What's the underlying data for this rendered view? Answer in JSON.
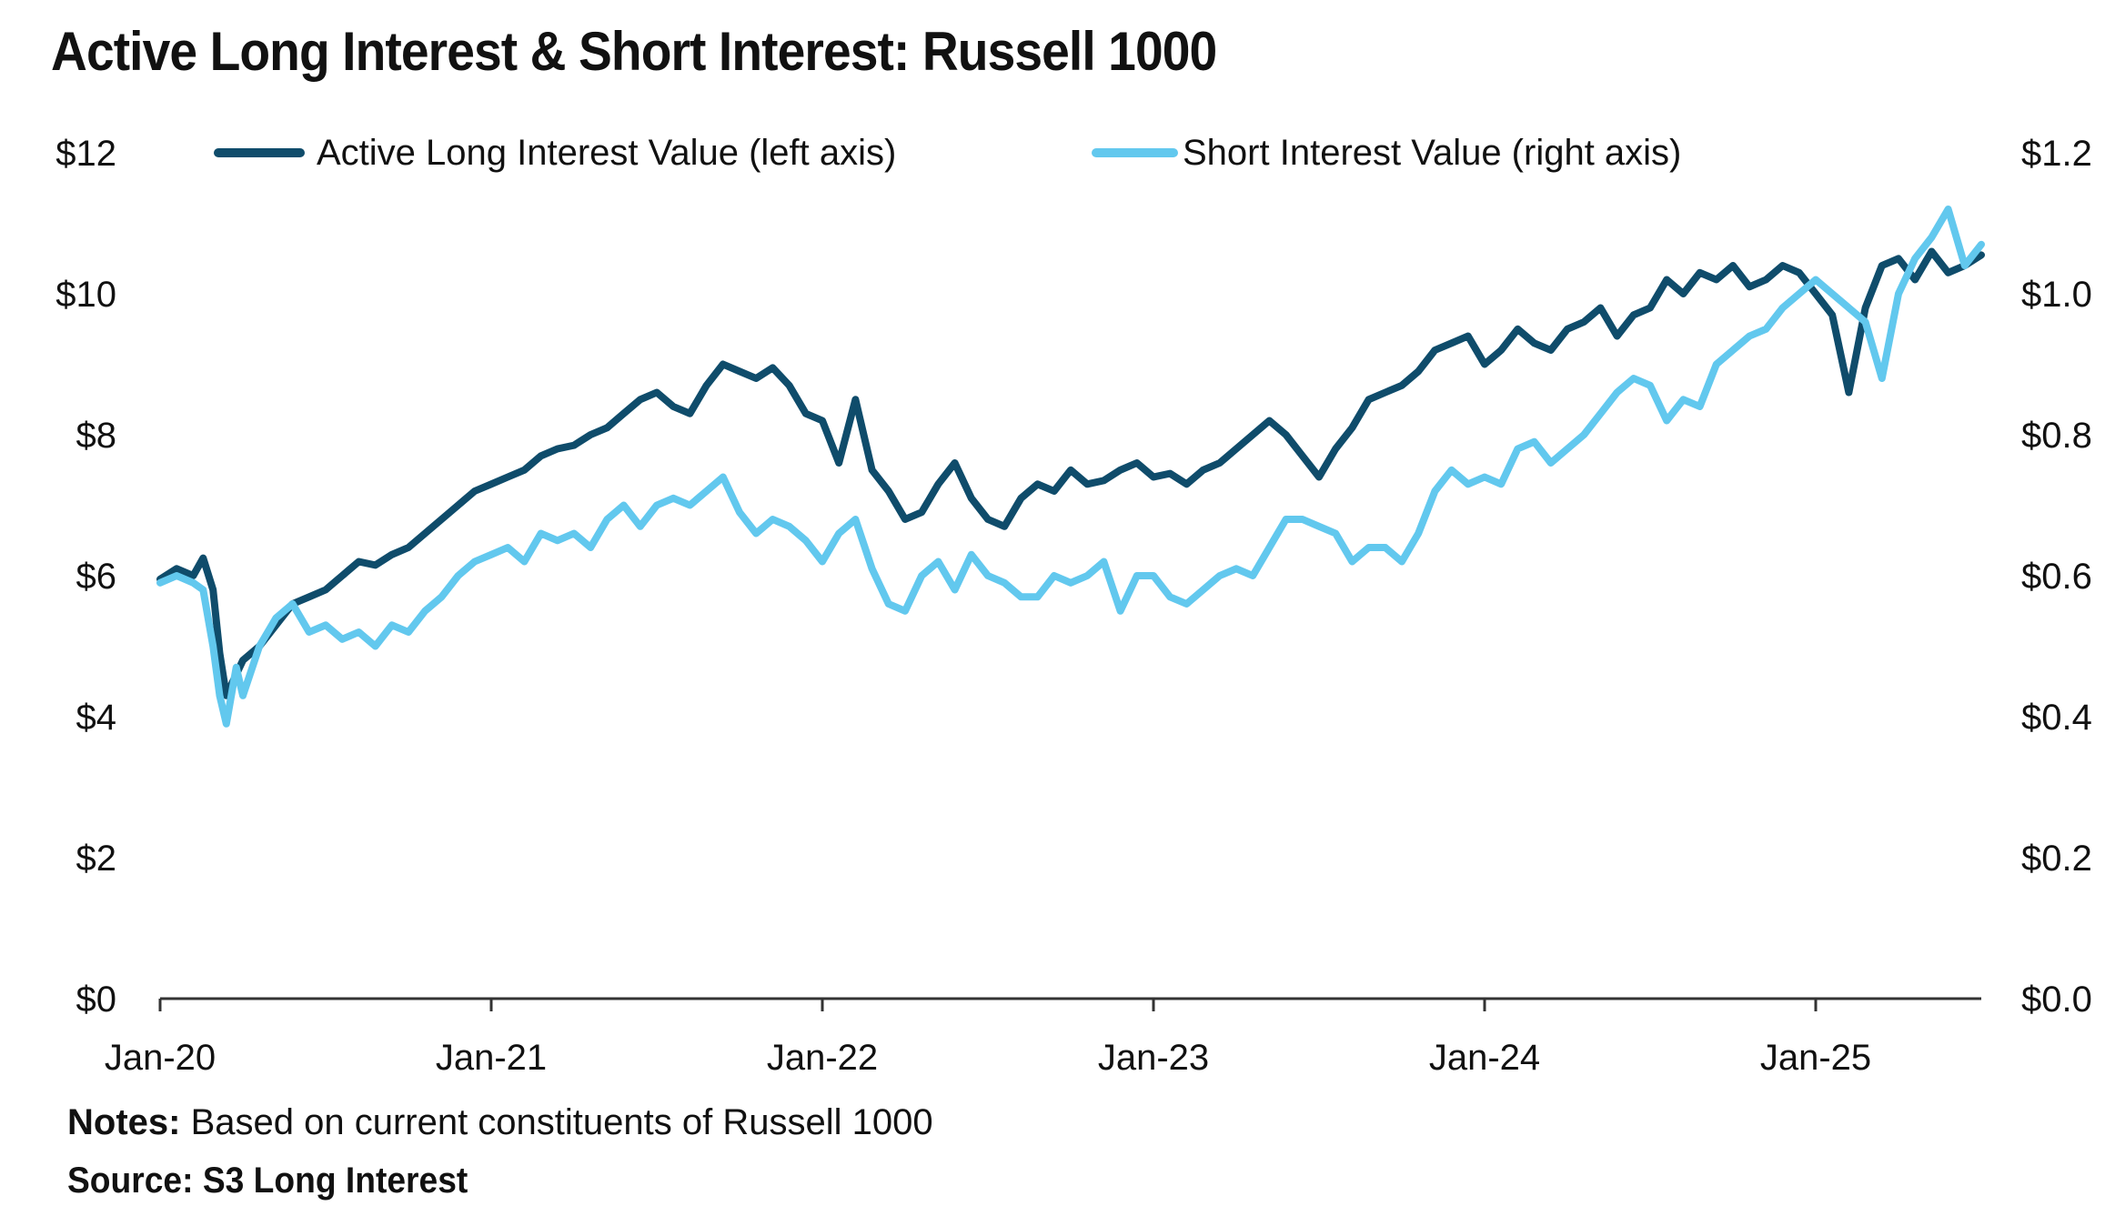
{
  "title": "Active Long Interest & Short Interest: Russell 1000",
  "notes": {
    "label": "Notes:",
    "text": " Based on current constituents of Russell 1000"
  },
  "source": "Source: S3 Long Interest",
  "colors": {
    "long": "#0f4c6b",
    "short": "#62c8ee",
    "axis": "#333333"
  },
  "chart_data": {
    "type": "line",
    "title": "Active Long Interest & Short Interest: Russell 1000",
    "x_range": [
      2020.0,
      2025.5
    ],
    "x_ticks": [
      {
        "value": 2020,
        "label": "Jan-20"
      },
      {
        "value": 2021,
        "label": "Jan-21"
      },
      {
        "value": 2022,
        "label": "Jan-22"
      },
      {
        "value": 2023,
        "label": "Jan-23"
      },
      {
        "value": 2024,
        "label": "Jan-24"
      },
      {
        "value": 2025,
        "label": "Jan-25"
      }
    ],
    "left_axis": {
      "min": 0,
      "max": 12,
      "ticks": [
        "$0",
        "$2",
        "$4",
        "$6",
        "$8",
        "$10",
        "$12"
      ],
      "tick_values": [
        0,
        2,
        4,
        6,
        8,
        10,
        12
      ]
    },
    "right_axis": {
      "min": 0,
      "max": 1.2,
      "ticks": [
        "$0.0",
        "$0.2",
        "$0.4",
        "$0.6",
        "$0.8",
        "$1.0",
        "$1.2"
      ],
      "tick_values": [
        0,
        0.2,
        0.4,
        0.6,
        0.8,
        1.0,
        1.2
      ]
    },
    "series": [
      {
        "name": "Active Long Interest Value  (left axis)",
        "axis": "left",
        "x": [
          2020.0,
          2020.05,
          2020.1,
          2020.13,
          2020.16,
          2020.18,
          2020.2,
          2020.23,
          2020.25,
          2020.3,
          2020.35,
          2020.4,
          2020.45,
          2020.5,
          2020.55,
          2020.6,
          2020.65,
          2020.7,
          2020.75,
          2020.8,
          2020.85,
          2020.9,
          2020.95,
          2021.0,
          2021.05,
          2021.1,
          2021.15,
          2021.2,
          2021.25,
          2021.3,
          2021.35,
          2021.4,
          2021.45,
          2021.5,
          2021.55,
          2021.6,
          2021.65,
          2021.7,
          2021.75,
          2021.8,
          2021.85,
          2021.9,
          2021.95,
          2022.0,
          2022.05,
          2022.1,
          2022.15,
          2022.2,
          2022.25,
          2022.3,
          2022.35,
          2022.4,
          2022.45,
          2022.5,
          2022.55,
          2022.6,
          2022.65,
          2022.7,
          2022.75,
          2022.8,
          2022.85,
          2022.9,
          2022.95,
          2023.0,
          2023.05,
          2023.1,
          2023.15,
          2023.2,
          2023.25,
          2023.3,
          2023.35,
          2023.4,
          2023.45,
          2023.5,
          2023.55,
          2023.6,
          2023.65,
          2023.7,
          2023.75,
          2023.8,
          2023.85,
          2023.9,
          2023.95,
          2024.0,
          2024.05,
          2024.1,
          2024.15,
          2024.2,
          2024.25,
          2024.3,
          2024.35,
          2024.4,
          2024.45,
          2024.5,
          2024.55,
          2024.6,
          2024.65,
          2024.7,
          2024.75,
          2024.8,
          2024.85,
          2024.9,
          2024.95,
          2025.0,
          2025.05,
          2025.1,
          2025.15,
          2025.2,
          2025.25,
          2025.3,
          2025.35,
          2025.4,
          2025.45,
          2025.5
        ],
        "values": [
          5.95,
          6.1,
          6.0,
          6.25,
          5.8,
          4.9,
          4.3,
          4.6,
          4.8,
          5.0,
          5.3,
          5.6,
          5.7,
          5.8,
          6.0,
          6.2,
          6.15,
          6.3,
          6.4,
          6.6,
          6.8,
          7.0,
          7.2,
          7.3,
          7.4,
          7.5,
          7.7,
          7.8,
          7.85,
          8.0,
          8.1,
          8.3,
          8.5,
          8.6,
          8.4,
          8.3,
          8.7,
          9.0,
          8.9,
          8.8,
          8.95,
          8.7,
          8.3,
          8.2,
          7.6,
          8.5,
          7.5,
          7.2,
          6.8,
          6.9,
          7.3,
          7.6,
          7.1,
          6.8,
          6.7,
          7.1,
          7.3,
          7.2,
          7.5,
          7.3,
          7.35,
          7.5,
          7.6,
          7.4,
          7.45,
          7.3,
          7.5,
          7.6,
          7.8,
          8.0,
          8.2,
          8.0,
          7.7,
          7.4,
          7.8,
          8.1,
          8.5,
          8.6,
          8.7,
          8.9,
          9.2,
          9.3,
          9.4,
          9.0,
          9.2,
          9.5,
          9.3,
          9.2,
          9.5,
          9.6,
          9.8,
          9.4,
          9.7,
          9.8,
          10.2,
          10.0,
          10.3,
          10.2,
          10.4,
          10.1,
          10.2,
          10.4,
          10.3,
          10.0,
          9.7,
          8.6,
          9.8,
          10.4,
          10.5,
          10.2,
          10.6,
          10.3,
          10.4,
          10.55
        ]
      },
      {
        "name": "Short Interest Value (right axis)",
        "axis": "right",
        "x": [
          2020.0,
          2020.05,
          2020.1,
          2020.13,
          2020.16,
          2020.18,
          2020.2,
          2020.23,
          2020.25,
          2020.3,
          2020.35,
          2020.4,
          2020.45,
          2020.5,
          2020.55,
          2020.6,
          2020.65,
          2020.7,
          2020.75,
          2020.8,
          2020.85,
          2020.9,
          2020.95,
          2021.0,
          2021.05,
          2021.1,
          2021.15,
          2021.2,
          2021.25,
          2021.3,
          2021.35,
          2021.4,
          2021.45,
          2021.5,
          2021.55,
          2021.6,
          2021.65,
          2021.7,
          2021.75,
          2021.8,
          2021.85,
          2021.9,
          2021.95,
          2022.0,
          2022.05,
          2022.1,
          2022.15,
          2022.2,
          2022.25,
          2022.3,
          2022.35,
          2022.4,
          2022.45,
          2022.5,
          2022.55,
          2022.6,
          2022.65,
          2022.7,
          2022.75,
          2022.8,
          2022.85,
          2022.9,
          2022.95,
          2023.0,
          2023.05,
          2023.1,
          2023.15,
          2023.2,
          2023.25,
          2023.3,
          2023.35,
          2023.4,
          2023.45,
          2023.5,
          2023.55,
          2023.6,
          2023.65,
          2023.7,
          2023.75,
          2023.8,
          2023.85,
          2023.9,
          2023.95,
          2024.0,
          2024.05,
          2024.1,
          2024.15,
          2024.2,
          2024.25,
          2024.3,
          2024.35,
          2024.4,
          2024.45,
          2024.5,
          2024.55,
          2024.6,
          2024.65,
          2024.7,
          2024.75,
          2024.8,
          2024.85,
          2024.9,
          2024.95,
          2025.0,
          2025.05,
          2025.1,
          2025.15,
          2025.2,
          2025.25,
          2025.3,
          2025.35,
          2025.4,
          2025.45,
          2025.5
        ],
        "values": [
          0.59,
          0.6,
          0.59,
          0.58,
          0.5,
          0.43,
          0.39,
          0.47,
          0.43,
          0.5,
          0.54,
          0.56,
          0.52,
          0.53,
          0.51,
          0.52,
          0.5,
          0.53,
          0.52,
          0.55,
          0.57,
          0.6,
          0.62,
          0.63,
          0.64,
          0.62,
          0.66,
          0.65,
          0.66,
          0.64,
          0.68,
          0.7,
          0.67,
          0.7,
          0.71,
          0.7,
          0.72,
          0.74,
          0.69,
          0.66,
          0.68,
          0.67,
          0.65,
          0.62,
          0.66,
          0.68,
          0.61,
          0.56,
          0.55,
          0.6,
          0.62,
          0.58,
          0.63,
          0.6,
          0.59,
          0.57,
          0.57,
          0.6,
          0.59,
          0.6,
          0.62,
          0.55,
          0.6,
          0.6,
          0.57,
          0.56,
          0.58,
          0.6,
          0.61,
          0.6,
          0.64,
          0.68,
          0.68,
          0.67,
          0.66,
          0.62,
          0.64,
          0.64,
          0.62,
          0.66,
          0.72,
          0.75,
          0.73,
          0.74,
          0.73,
          0.78,
          0.79,
          0.76,
          0.78,
          0.8,
          0.83,
          0.86,
          0.88,
          0.87,
          0.82,
          0.85,
          0.84,
          0.9,
          0.92,
          0.94,
          0.95,
          0.98,
          1.0,
          1.02,
          1.0,
          0.98,
          0.96,
          0.88,
          1.0,
          1.05,
          1.08,
          1.12,
          1.04,
          1.07
        ]
      }
    ],
    "legend": [
      "Active Long Interest Value  (left axis)",
      "Short Interest Value (right axis)"
    ]
  }
}
